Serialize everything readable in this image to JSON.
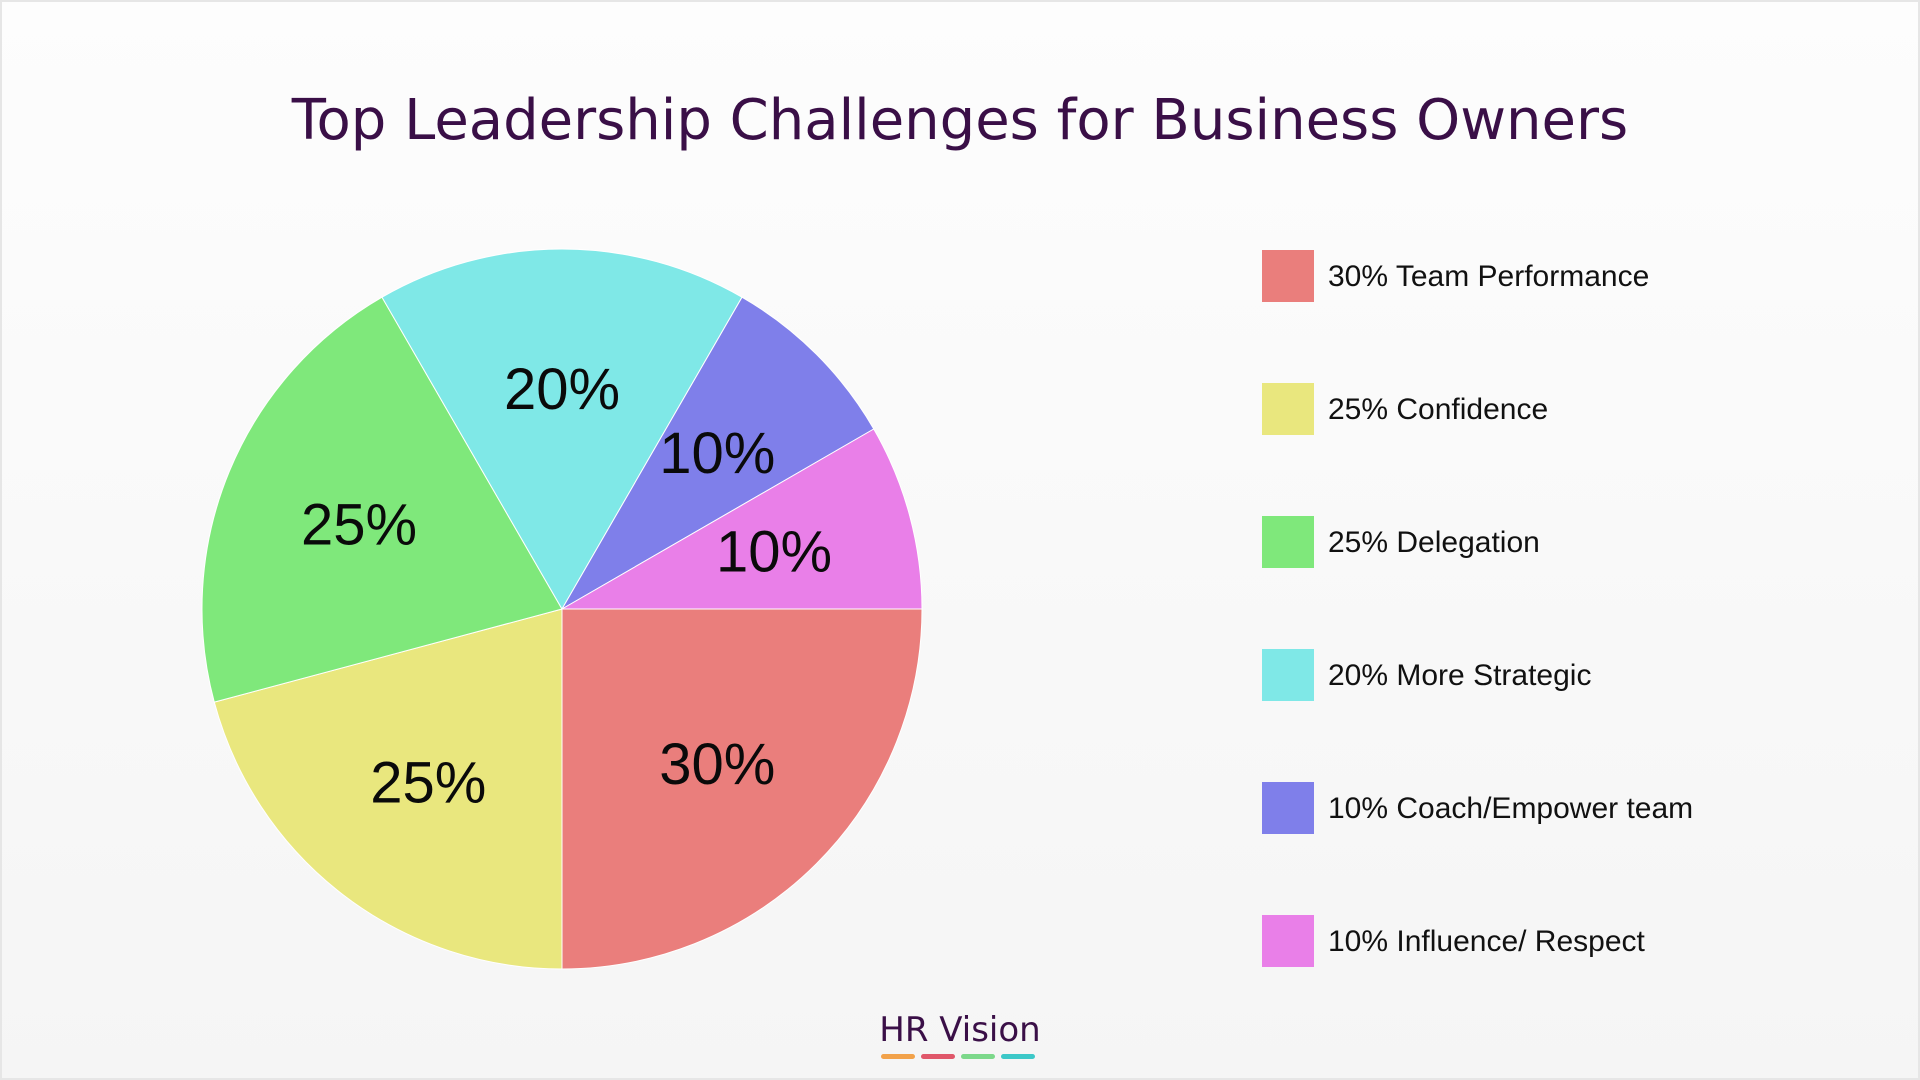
{
  "title": "Top Leadership Challenges for Business Owners",
  "brand": {
    "name": "HR Vision",
    "bar_colors": [
      "#f2a24a",
      "#e0576a",
      "#7cd88a",
      "#3cc8c8"
    ]
  },
  "chart_data": {
    "type": "pie",
    "title": "Top Leadership Challenges for Business Owners",
    "legend_position": "right",
    "slices": [
      {
        "label": "Team Performance",
        "value": 30,
        "display": "30%",
        "legend": "30% Team Performance",
        "color": "#ea7e7c"
      },
      {
        "label": "Confidence",
        "value": 25,
        "display": "25%",
        "legend": "25% Confidence",
        "color": "#e9e77e"
      },
      {
        "label": "Delegation",
        "value": 25,
        "display": "25%",
        "legend": "25% Delegation",
        "color": "#7fe87b"
      },
      {
        "label": "More Strategic",
        "value": 20,
        "display": "20%",
        "legend": "20% More Strategic",
        "color": "#7fe8e7"
      },
      {
        "label": "Coach/Empower team",
        "value": 10,
        "display": "10%",
        "legend": "10% Coach/Empower team",
        "color": "#7f7fea"
      },
      {
        "label": "Influence/ Respect",
        "value": 10,
        "display": "10%",
        "legend": "10% Influence/ Respect",
        "color": "#e97fe8"
      }
    ]
  }
}
